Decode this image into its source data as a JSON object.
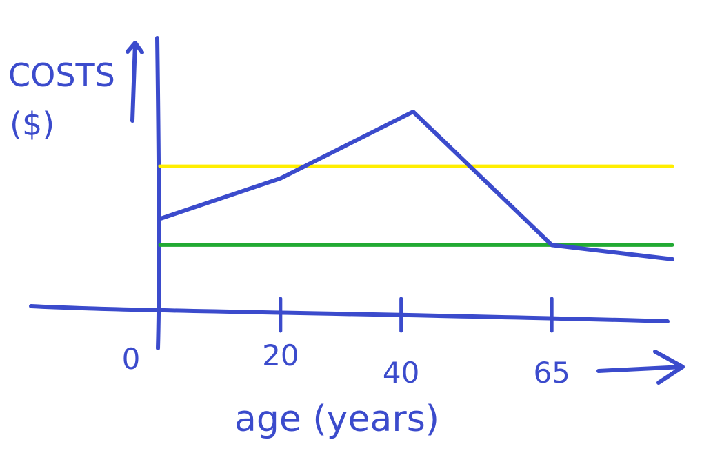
{
  "chart_data": {
    "type": "line",
    "title": "",
    "ylabel_line1": "COSTS",
    "ylabel_line2": "($)",
    "xlabel": "age (years)",
    "x_ticks": [
      "0",
      "20",
      "40",
      "65"
    ],
    "xlim": [
      0,
      85
    ],
    "ylim": [
      0,
      100
    ],
    "series": [
      {
        "color": "#3b4bcc",
        "x": [
          0,
          20,
          42,
          65,
          85
        ],
        "y": [
          47,
          67,
          100,
          34,
          27
        ]
      },
      {
        "color": "#ffee00",
        "x": [
          0,
          85
        ],
        "y": [
          73,
          73
        ]
      },
      {
        "color": "#22aa33",
        "x": [
          0,
          85
        ],
        "y": [
          34,
          34
        ]
      }
    ],
    "grid": false,
    "legend": "none"
  }
}
